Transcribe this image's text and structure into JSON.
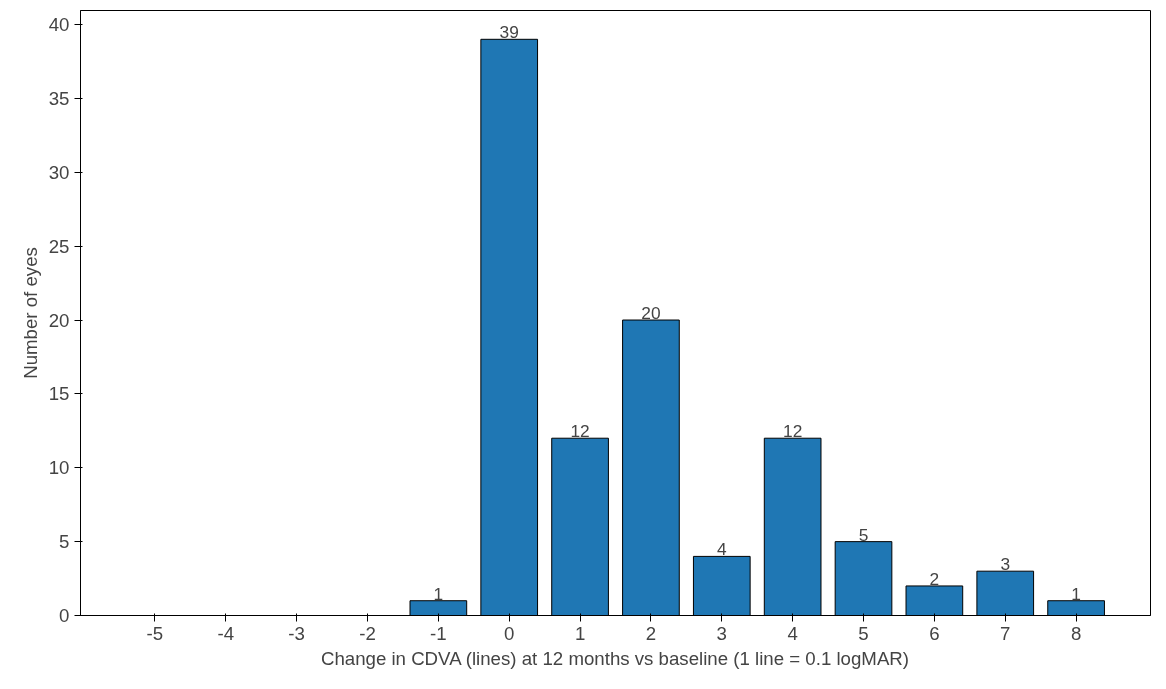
{
  "chart_data": {
    "type": "bar",
    "xlabel": "Change in CDVA (lines) at 12 months vs baseline (1 line = 0.1 logMAR)",
    "ylabel": "Number of eyes",
    "categories": [
      "-5",
      "-4",
      "-3",
      "-2",
      "-1",
      "0",
      "1",
      "2",
      "3",
      "4",
      "5",
      "6",
      "7",
      "8"
    ],
    "values": [
      null,
      null,
      null,
      null,
      1,
      39,
      12,
      20,
      4,
      12,
      5,
      2,
      3,
      1
    ],
    "value_labels": [
      null,
      null,
      null,
      null,
      "1",
      "39",
      "12",
      "20",
      "4",
      "12",
      "5",
      "2",
      "3",
      "1"
    ],
    "color": "#1f77b4",
    "ylim": [
      0,
      40.95
    ],
    "yticks": [
      0,
      5,
      10,
      15,
      20,
      25,
      30,
      35,
      40
    ],
    "grid": false
  }
}
